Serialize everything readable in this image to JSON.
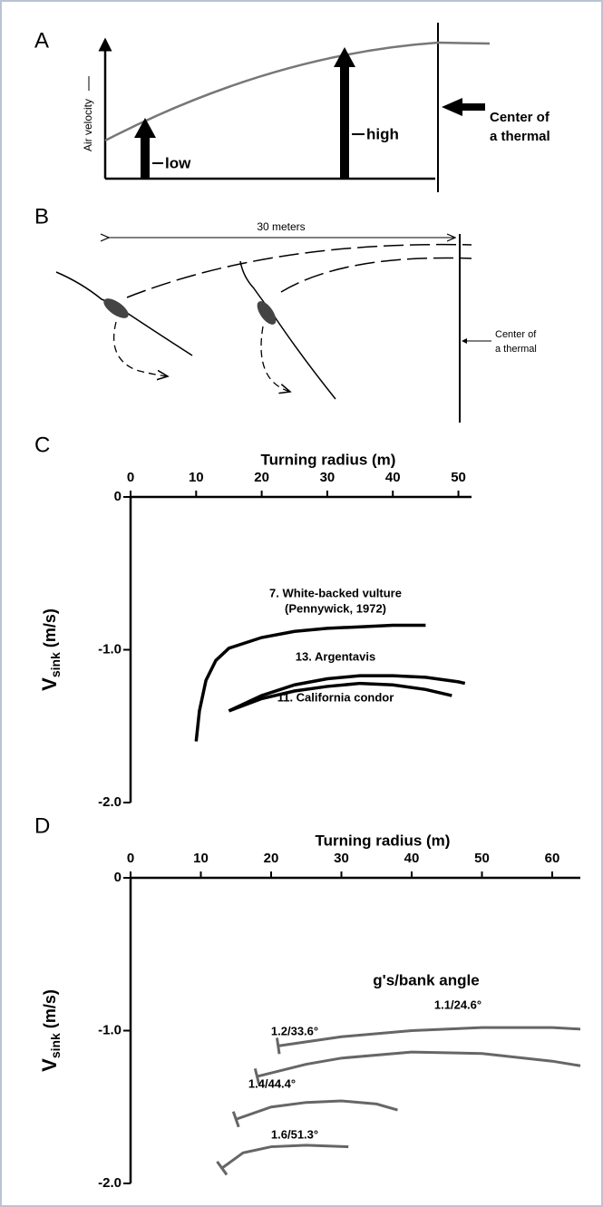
{
  "panel_a": {
    "label": "A",
    "y_label": "Air velocity",
    "low": "low",
    "high": "high",
    "center": [
      "Center of",
      "a thermal"
    ]
  },
  "panel_b": {
    "label": "B",
    "distance": "30 meters",
    "center": [
      "Center of",
      "a thermal"
    ]
  },
  "chart_data": [
    {
      "type": "line",
      "label": "C",
      "title": "Turning radius (m)",
      "ylabel": "V",
      "ylabel_sub": "sink",
      "ylabel_unit": "(m/s)",
      "xlim": [
        0,
        52
      ],
      "xticks": [
        0,
        10,
        20,
        30,
        40,
        50
      ],
      "ylim": [
        -2,
        0
      ],
      "yticks": [
        0,
        {
          "value": -1,
          "label": "-1.0"
        },
        {
          "value": -2,
          "label": "-2.0"
        }
      ],
      "annotations": [
        "(Pennywick, 1972)"
      ],
      "series": [
        {
          "name": "7. White-backed vulture",
          "color": "#000000",
          "x": [
            10,
            10.5,
            11.5,
            13,
            15,
            20,
            25,
            30,
            35,
            40,
            45
          ],
          "values": [
            -1.6,
            -1.4,
            -1.2,
            -1.07,
            -0.99,
            -0.92,
            -0.88,
            -0.86,
            -0.85,
            -0.84,
            -0.84
          ]
        },
        {
          "name": "13. Argentavis",
          "color": "#000000",
          "x": [
            15,
            20,
            25,
            30,
            35,
            40,
            45,
            50,
            51
          ],
          "values": [
            -1.4,
            -1.3,
            -1.23,
            -1.19,
            -1.17,
            -1.17,
            -1.18,
            -1.21,
            -1.22
          ]
        },
        {
          "name": "11. California condor",
          "color": "#000000",
          "x": [
            15,
            20,
            25,
            30,
            35,
            40,
            45,
            49
          ],
          "values": [
            -1.4,
            -1.32,
            -1.27,
            -1.24,
            -1.22,
            -1.23,
            -1.26,
            -1.3
          ]
        }
      ]
    },
    {
      "type": "line",
      "label": "D",
      "title": "Turning radius (m)",
      "ylabel": "V",
      "ylabel_sub": "sink",
      "ylabel_unit": "(m/s)",
      "xlim": [
        0,
        64
      ],
      "xticks": [
        0,
        10,
        20,
        30,
        40,
        50,
        60
      ],
      "ylim": [
        -2,
        0
      ],
      "yticks": [
        0,
        {
          "value": -1,
          "label": "-1.0"
        },
        {
          "value": -2,
          "label": "-2.0"
        }
      ],
      "legend_title": "g's/bank angle",
      "series": [
        {
          "name": "1.1/24.6°",
          "color": "#666666",
          "x": [
            21,
            30,
            40,
            50,
            60,
            64
          ],
          "values": [
            -1.1,
            -1.04,
            -1.0,
            -0.98,
            -0.98,
            -0.99
          ]
        },
        {
          "name": "1.2/33.6°",
          "color": "#666666",
          "x": [
            18,
            25,
            30,
            40,
            50,
            60,
            64
          ],
          "values": [
            -1.3,
            -1.22,
            -1.18,
            -1.14,
            -1.15,
            -1.2,
            -1.23
          ]
        },
        {
          "name": "1.4/44.4°",
          "color": "#666666",
          "x": [
            15,
            20,
            25,
            30,
            35,
            38
          ],
          "values": [
            -1.58,
            -1.5,
            -1.47,
            -1.46,
            -1.48,
            -1.52
          ]
        },
        {
          "name": "1.6/51.3°",
          "color": "#666666",
          "x": [
            13,
            16,
            20,
            25,
            31
          ],
          "values": [
            -1.9,
            -1.8,
            -1.76,
            -1.75,
            -1.76
          ]
        }
      ]
    }
  ]
}
